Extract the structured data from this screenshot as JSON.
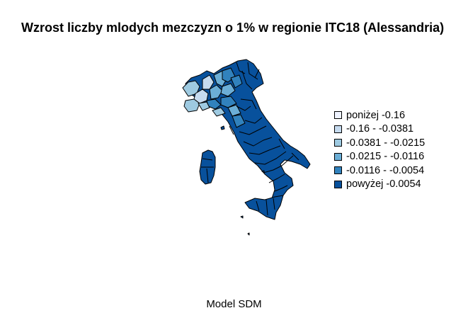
{
  "title": "Wzrost liczby mlodych mezczyzn o 1% w regionie ITC18 (Alessandria)",
  "caption": "Model SDM",
  "colors": {
    "background": "#ffffff",
    "border": "#000000",
    "classes": [
      "#eff3ff",
      "#c6dbef",
      "#9ecae1",
      "#6baed6",
      "#3182bd",
      "#08519c"
    ]
  },
  "legend": [
    {
      "label": "poniżej -0.16",
      "color": "#eff3ff"
    },
    {
      "label": "-0.16 - -0.0381",
      "color": "#c6dbef"
    },
    {
      "label": "-0.0381 - -0.0215",
      "color": "#9ecae1"
    },
    {
      "label": "-0.0215 - -0.0116",
      "color": "#6baed6"
    },
    {
      "label": "-0.0116 - -0.0054",
      "color": "#3182bd"
    },
    {
      "label": "powyżej -0.0054",
      "color": "#08519c"
    }
  ]
}
